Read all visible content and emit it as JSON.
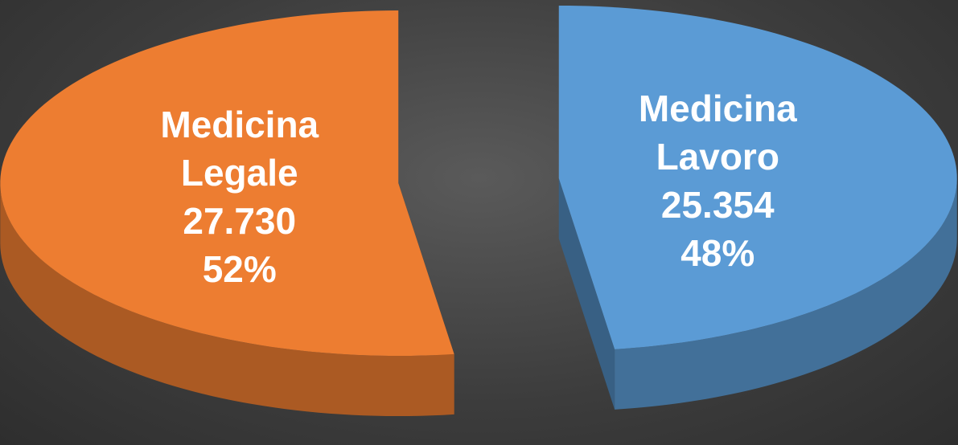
{
  "chart_data": {
    "type": "pie",
    "categories": [
      "Medicina Legale",
      "Medicina Lavoro"
    ],
    "values": [
      27730,
      25354
    ],
    "value_labels": [
      "27.730",
      "25.354"
    ],
    "percent_labels": [
      "52%",
      "48%"
    ],
    "colors": [
      "#ed7d31",
      "#5b9bd5"
    ]
  }
}
